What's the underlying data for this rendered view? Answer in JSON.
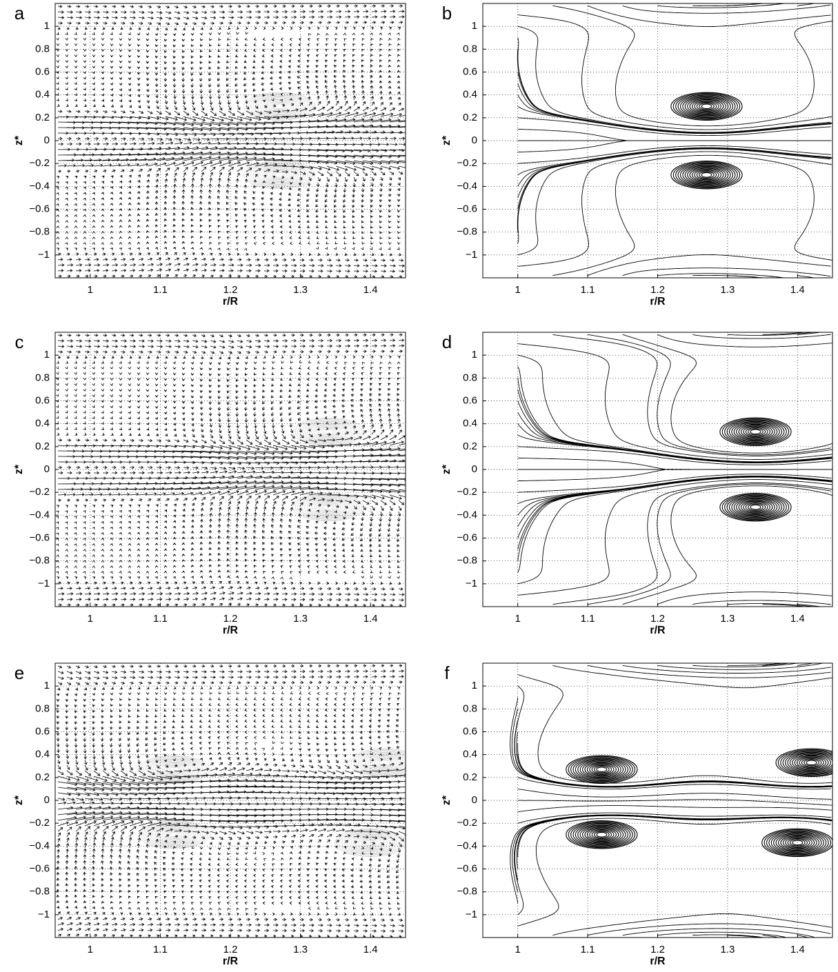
{
  "chart_data": [
    {
      "type": "quiver",
      "panel_label": "a",
      "x_label": "r/R",
      "y_label": "z*",
      "xlim": [
        0.95,
        1.45
      ],
      "ylim": [
        -1.2,
        1.2
      ],
      "xticks": [
        1,
        1.1,
        1.2,
        1.3,
        1.4
      ],
      "yticks": [
        {
          "value": -1,
          "label": "−1"
        },
        {
          "value": -0.8,
          "label": "−0.8"
        },
        {
          "value": -0.6,
          "label": "−0.6"
        },
        {
          "value": -0.4,
          "label": "−0.4"
        },
        {
          "value": -0.2,
          "label": "−0.2"
        },
        0,
        0.2,
        0.4,
        0.6,
        0.8,
        1
      ],
      "grid": true,
      "vortices": {
        "r": [
          1.27,
          1.27
        ],
        "z": [
          0.3,
          -0.3
        ]
      }
    },
    {
      "type": "streamline",
      "panel_label": "b",
      "x_label": "r/R",
      "y_label": "z*",
      "xlim": [
        0.95,
        1.45
      ],
      "ylim": [
        -1.2,
        1.2
      ],
      "xticks": [
        1,
        1.1,
        1.2,
        1.3,
        1.4
      ],
      "yticks": [
        {
          "value": -1,
          "label": "−1"
        },
        {
          "value": -0.8,
          "label": "−0.8"
        },
        {
          "value": -0.6,
          "label": "−0.6"
        },
        {
          "value": -0.4,
          "label": "−0.4"
        },
        {
          "value": -0.2,
          "label": "−0.2"
        },
        0,
        0.2,
        0.4,
        0.6,
        0.8,
        1
      ],
      "grid": true,
      "vortices": {
        "r": [
          1.27,
          1.27
        ],
        "z": [
          0.3,
          -0.3
        ]
      }
    },
    {
      "type": "quiver",
      "panel_label": "c",
      "x_label": "r/R",
      "y_label": "z*",
      "xlim": [
        0.95,
        1.45
      ],
      "ylim": [
        -1.2,
        1.2
      ],
      "xticks": [
        1,
        1.1,
        1.2,
        1.3,
        1.4
      ],
      "yticks": [
        {
          "value": -1,
          "label": "−1"
        },
        {
          "value": -0.8,
          "label": "−0.8"
        },
        {
          "value": -0.6,
          "label": "−0.6"
        },
        {
          "value": -0.4,
          "label": "−0.4"
        },
        {
          "value": -0.2,
          "label": "−0.2"
        },
        0,
        0.2,
        0.4,
        0.6,
        0.8,
        1
      ],
      "grid": true,
      "vortices": {
        "r": [
          1.34,
          1.34
        ],
        "z": [
          0.33,
          -0.33
        ]
      }
    },
    {
      "type": "streamline",
      "panel_label": "d",
      "x_label": "r/R",
      "y_label": "z*",
      "xlim": [
        0.95,
        1.45
      ],
      "ylim": [
        -1.2,
        1.2
      ],
      "xticks": [
        1,
        1.1,
        1.2,
        1.3,
        1.4
      ],
      "yticks": [
        {
          "value": -1,
          "label": "−1"
        },
        {
          "value": -0.8,
          "label": "−0.8"
        },
        {
          "value": -0.6,
          "label": "−0.6"
        },
        {
          "value": -0.4,
          "label": "−0.4"
        },
        {
          "value": -0.2,
          "label": "−0.2"
        },
        0,
        0.2,
        0.4,
        0.6,
        0.8,
        1
      ],
      "grid": true,
      "vortices": {
        "r": [
          1.34,
          1.34
        ],
        "z": [
          0.33,
          -0.33
        ]
      }
    },
    {
      "type": "quiver",
      "panel_label": "e",
      "x_label": "r/R",
      "y_label": "z*",
      "xlim": [
        0.95,
        1.45
      ],
      "ylim": [
        -1.2,
        1.2
      ],
      "xticks": [
        1,
        1.1,
        1.2,
        1.3,
        1.4
      ],
      "yticks": [
        {
          "value": -1,
          "label": "−1"
        },
        {
          "value": -0.8,
          "label": "−0.8"
        },
        {
          "value": -0.6,
          "label": "−0.6"
        },
        {
          "value": -0.4,
          "label": "−0.4"
        },
        {
          "value": -0.2,
          "label": "−0.2"
        },
        0,
        0.2,
        0.4,
        0.6,
        0.8,
        1
      ],
      "grid": true,
      "vortices": {
        "r": [
          1.12,
          1.12,
          1.42,
          1.4
        ],
        "z": [
          0.27,
          -0.3,
          0.33,
          -0.37
        ]
      }
    },
    {
      "type": "streamline",
      "panel_label": "f",
      "x_label": "r/R",
      "y_label": "z*",
      "xlim": [
        0.95,
        1.45
      ],
      "ylim": [
        -1.2,
        1.2
      ],
      "xticks": [
        1,
        1.1,
        1.2,
        1.3,
        1.4
      ],
      "yticks": [
        {
          "value": -1,
          "label": "−1"
        },
        {
          "value": -0.8,
          "label": "−0.8"
        },
        {
          "value": -0.6,
          "label": "−0.6"
        },
        {
          "value": -0.4,
          "label": "−0.4"
        },
        {
          "value": -0.2,
          "label": "−0.2"
        },
        0,
        0.2,
        0.4,
        0.6,
        0.8,
        1
      ],
      "grid": true,
      "vortices": {
        "r": [
          1.12,
          1.12,
          1.42,
          1.4
        ],
        "z": [
          0.27,
          -0.3,
          0.33,
          -0.37
        ]
      }
    }
  ]
}
